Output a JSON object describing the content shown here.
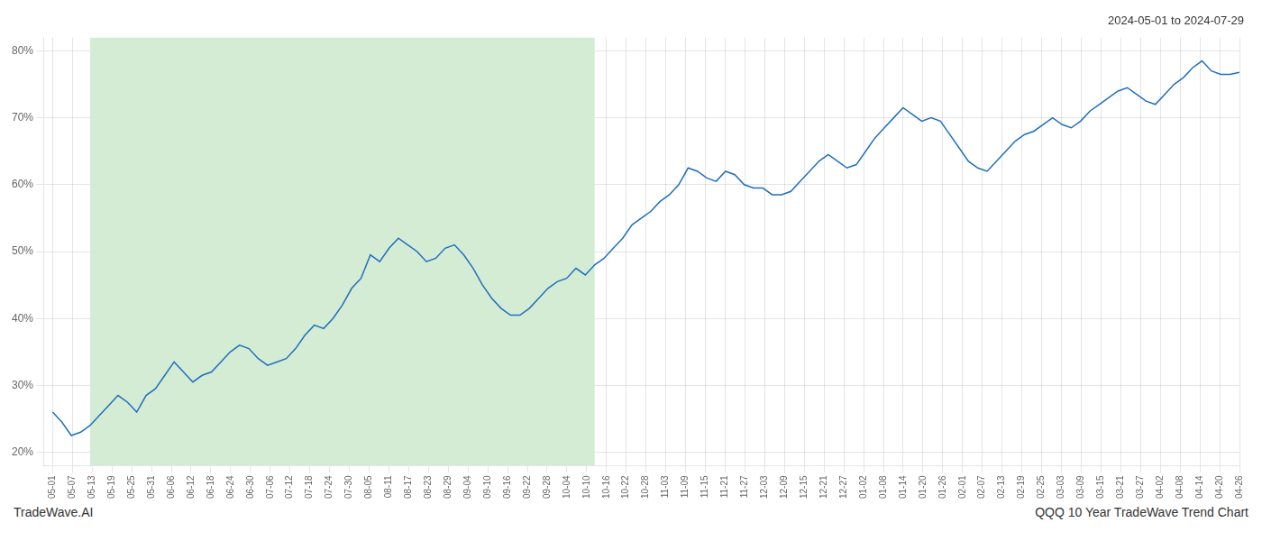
{
  "chart_data": {
    "type": "line",
    "title": "2024-05-01 to 2024-07-29",
    "annotations": [
      "TradeWave.AI",
      "QQQ 10 Year TradeWave Trend Chart"
    ],
    "color": "#1f6fbf",
    "marker": "none",
    "grid": true,
    "span": {
      "from": 4,
      "to": 58,
      "color": "#d4ecd4"
    },
    "xlim": [
      -1,
      127
    ],
    "xticks": [
      {
        "value": 0,
        "label": "05-01"
      },
      {
        "value": 2.1166666666666667,
        "label": "05-07"
      },
      {
        "value": 4.233333333333333,
        "label": "05-13"
      },
      {
        "value": 6.35,
        "label": "05-19"
      },
      {
        "value": 8.466666666666667,
        "label": "05-25"
      },
      {
        "value": 10.583333333333334,
        "label": "05-31"
      },
      {
        "value": 12.7,
        "label": "06-06"
      },
      {
        "value": 14.816666666666666,
        "label": "06-12"
      },
      {
        "value": 16.933333333333334,
        "label": "06-18"
      },
      {
        "value": 19.05,
        "label": "06-24"
      },
      {
        "value": 21.166666666666668,
        "label": "06-30"
      },
      {
        "value": 23.283333333333335,
        "label": "07-06"
      },
      {
        "value": 25.4,
        "label": "07-12"
      },
      {
        "value": 27.516666666666666,
        "label": "07-18"
      },
      {
        "value": 29.633333333333333,
        "label": "07-24"
      },
      {
        "value": 31.75,
        "label": "07-30"
      },
      {
        "value": 33.86666666666667,
        "label": "08-05"
      },
      {
        "value": 35.983333333333334,
        "label": "08-11"
      },
      {
        "value": 38.1,
        "label": "08-17"
      },
      {
        "value": 40.21666666666667,
        "label": "08-23"
      },
      {
        "value": 42.333333333333336,
        "label": "08-29"
      },
      {
        "value": 44.45,
        "label": "09-04"
      },
      {
        "value": 46.56666666666667,
        "label": "09-10"
      },
      {
        "value": 48.68333333333333,
        "label": "09-16"
      },
      {
        "value": 50.8,
        "label": "09-22"
      },
      {
        "value": 52.916666666666664,
        "label": "09-28"
      },
      {
        "value": 55.03333333333333,
        "label": "10-04"
      },
      {
        "value": 57.15,
        "label": "10-10"
      },
      {
        "value": 59.266666666666666,
        "label": "10-16"
      },
      {
        "value": 61.38333333333333,
        "label": "10-22"
      },
      {
        "value": 63.5,
        "label": "10-28"
      },
      {
        "value": 65.61666666666666,
        "label": "11-03"
      },
      {
        "value": 67.73333333333333,
        "label": "11-09"
      },
      {
        "value": 69.85,
        "label": "11-15"
      },
      {
        "value": 71.96666666666667,
        "label": "11-21"
      },
      {
        "value": 74.08333333333333,
        "label": "11-27"
      },
      {
        "value": 76.2,
        "label": "12-03"
      },
      {
        "value": 78.31666666666666,
        "label": "12-09"
      },
      {
        "value": 80.43333333333334,
        "label": "12-15"
      },
      {
        "value": 82.55,
        "label": "12-21"
      },
      {
        "value": 84.66666666666667,
        "label": "12-27"
      },
      {
        "value": 86.78333333333333,
        "label": "01-02"
      },
      {
        "value": 88.9,
        "label": "01-08"
      },
      {
        "value": 91.01666666666667,
        "label": "01-14"
      },
      {
        "value": 93.13333333333334,
        "label": "01-20"
      },
      {
        "value": 95.25,
        "label": "01-26"
      },
      {
        "value": 97.36666666666666,
        "label": "02-01"
      },
      {
        "value": 99.48333333333333,
        "label": "02-07"
      },
      {
        "value": 101.6,
        "label": "02-13"
      },
      {
        "value": 103.71666666666667,
        "label": "02-19"
      },
      {
        "value": 105.83333333333333,
        "label": "02-25"
      },
      {
        "value": 107.95,
        "label": "03-03"
      },
      {
        "value": 110.06666666666666,
        "label": "03-09"
      },
      {
        "value": 112.18333333333334,
        "label": "03-15"
      },
      {
        "value": 114.3,
        "label": "03-21"
      },
      {
        "value": 116.41666666666667,
        "label": "03-27"
      },
      {
        "value": 118.53333333333333,
        "label": "04-02"
      },
      {
        "value": 120.65,
        "label": "04-08"
      },
      {
        "value": 122.76666666666667,
        "label": "04-14"
      },
      {
        "value": 124.88333333333334,
        "label": "04-20"
      },
      {
        "value": 127,
        "label": "04-26"
      }
    ],
    "ylim": [
      18,
      82
    ],
    "yticks": [
      {
        "value": 20,
        "label": "20%"
      },
      {
        "value": 30,
        "label": "30%"
      },
      {
        "value": 40,
        "label": "40%"
      },
      {
        "value": 50,
        "label": "50%"
      },
      {
        "value": 60,
        "label": "60%"
      },
      {
        "value": 70,
        "label": "70%"
      },
      {
        "value": 80,
        "label": "80%"
      }
    ],
    "x": [
      0,
      1,
      2,
      3,
      4,
      5,
      6,
      7,
      8,
      9,
      10,
      11,
      12,
      13,
      14,
      15,
      16,
      17,
      18,
      19,
      20,
      21,
      22,
      23,
      24,
      25,
      26,
      27,
      28,
      29,
      30,
      31,
      32,
      33,
      34,
      35,
      36,
      37,
      38,
      39,
      40,
      41,
      42,
      43,
      44,
      45,
      46,
      47,
      48,
      49,
      50,
      51,
      52,
      53,
      54,
      55,
      56,
      57,
      58,
      59,
      60,
      61,
      62,
      63,
      64,
      65,
      66,
      67,
      68,
      69,
      70,
      71,
      72,
      73,
      74,
      75,
      76,
      77,
      78,
      79,
      80,
      81,
      82,
      83,
      84,
      85,
      86,
      87,
      88,
      89,
      90,
      91,
      92,
      93,
      94,
      95,
      96,
      97,
      98,
      99,
      100,
      101,
      102,
      103,
      104,
      105,
      106,
      107,
      108,
      109,
      110,
      111,
      112,
      113,
      114,
      115,
      116,
      117,
      118,
      119,
      120,
      121,
      122,
      123,
      124,
      125,
      126,
      127
    ],
    "values": [
      26.0,
      24.5,
      22.5,
      23.0,
      24.0,
      25.5,
      27.0,
      28.5,
      27.5,
      26.0,
      28.5,
      29.5,
      31.5,
      33.5,
      32.0,
      30.5,
      31.5,
      32.0,
      33.5,
      35.0,
      36.0,
      35.5,
      34.0,
      33.0,
      33.5,
      34.0,
      35.5,
      37.5,
      39.0,
      38.5,
      40.0,
      42.0,
      44.5,
      46.0,
      49.5,
      48.5,
      50.5,
      52.0,
      51.0,
      50.0,
      48.5,
      49.0,
      50.5,
      51.0,
      49.5,
      47.5,
      45.0,
      43.0,
      41.5,
      40.5,
      40.5,
      41.5,
      43.0,
      44.5,
      45.5,
      46.0,
      47.5,
      46.5,
      48.0,
      49.0,
      50.5,
      52.0,
      54.0,
      55.0,
      56.0,
      57.5,
      58.5,
      60.0,
      62.5,
      62.0,
      61.0,
      60.5,
      62.0,
      61.5,
      60.0,
      59.5,
      59.5,
      58.5,
      58.5,
      59.0,
      60.5,
      62.0,
      63.5,
      64.5,
      63.5,
      62.5,
      63.0,
      65.0,
      67.0,
      68.5,
      70.0,
      71.5,
      70.5,
      69.5,
      70.0,
      69.5,
      67.5,
      65.5,
      63.5,
      62.5,
      62.0,
      63.5,
      65.0,
      66.5,
      67.5,
      68.0,
      69.0,
      70.0,
      69.0,
      68.5,
      69.5,
      71.0,
      72.0,
      73.0,
      74.0,
      74.5,
      73.5,
      72.5,
      72.0,
      73.5,
      75.0,
      76.0,
      77.5,
      78.5,
      77.0,
      76.5,
      76.5,
      76.8
    ]
  }
}
